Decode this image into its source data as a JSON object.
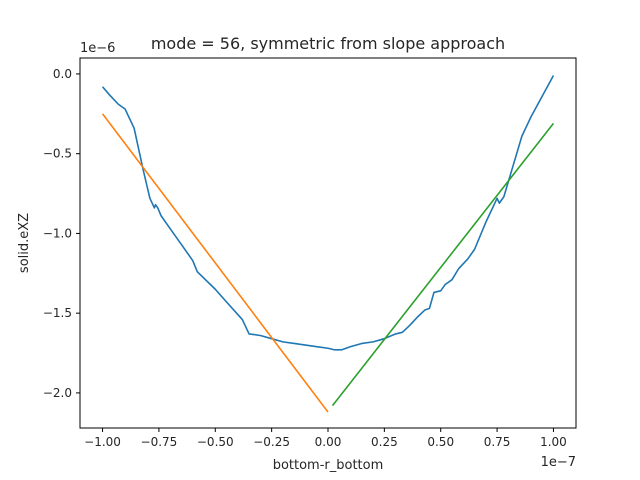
{
  "chart_data": {
    "type": "line",
    "title": "mode = 56, symmetric from slope approach",
    "xlabel": "bottom-r_bottom",
    "ylabel": "solid.eXZ",
    "x_offset_label": "1e−7",
    "y_offset_label": "1e−6",
    "x_scale": 1e-07,
    "y_scale": 1e-06,
    "xlim": [
      -1.1,
      1.1
    ],
    "ylim": [
      -2.22,
      0.1
    ],
    "x_ticks": [
      -1.0,
      -0.75,
      -0.5,
      -0.25,
      0.0,
      0.25,
      0.5,
      0.75,
      1.0
    ],
    "x_tick_labels": [
      "−1.00",
      "−0.75",
      "−0.50",
      "−0.25",
      "0.00",
      "0.25",
      "0.50",
      "0.75",
      "1.00"
    ],
    "y_ticks": [
      0.0,
      -0.5,
      -1.0,
      -1.5,
      -2.0
    ],
    "y_tick_labels": [
      "0.0",
      "−0.5",
      "−1.0",
      "−1.5",
      "−2.0"
    ],
    "grid": false,
    "legend": false,
    "series": [
      {
        "color": "#1f77b4",
        "x": [
          -1.0,
          -0.97,
          -0.93,
          -0.9,
          -0.86,
          -0.82,
          -0.79,
          -0.77,
          -0.765,
          -0.755,
          -0.74,
          -0.7,
          -0.65,
          -0.6,
          -0.58,
          -0.5,
          -0.45,
          -0.38,
          -0.35,
          -0.3,
          -0.25,
          -0.2,
          -0.15,
          -0.1,
          -0.05,
          0.0,
          0.03,
          0.06,
          0.1,
          0.15,
          0.2,
          0.25,
          0.3,
          0.33,
          0.36,
          0.4,
          0.43,
          0.45,
          0.47,
          0.5,
          0.52,
          0.55,
          0.58,
          0.62,
          0.65,
          0.7,
          0.75,
          0.76,
          0.78,
          0.82,
          0.86,
          0.9,
          0.95,
          1.0
        ],
        "y": [
          -0.08,
          -0.13,
          -0.19,
          -0.22,
          -0.34,
          -0.6,
          -0.78,
          -0.84,
          -0.82,
          -0.84,
          -0.89,
          -0.97,
          -1.07,
          -1.17,
          -1.24,
          -1.35,
          -1.43,
          -1.54,
          -1.63,
          -1.64,
          -1.66,
          -1.68,
          -1.69,
          -1.7,
          -1.71,
          -1.72,
          -1.73,
          -1.73,
          -1.71,
          -1.69,
          -1.68,
          -1.66,
          -1.63,
          -1.62,
          -1.58,
          -1.52,
          -1.48,
          -1.47,
          -1.37,
          -1.36,
          -1.32,
          -1.29,
          -1.22,
          -1.16,
          -1.1,
          -0.93,
          -0.78,
          -0.81,
          -0.77,
          -0.58,
          -0.39,
          -0.27,
          -0.14,
          -0.01
        ]
      },
      {
        "color": "#ff7f0e",
        "x": [
          -1.0,
          0.0
        ],
        "y": [
          -0.25,
          -2.12
        ]
      },
      {
        "color": "#2ca02c",
        "x": [
          0.02,
          1.0
        ],
        "y": [
          -2.08,
          -0.31
        ]
      }
    ]
  }
}
